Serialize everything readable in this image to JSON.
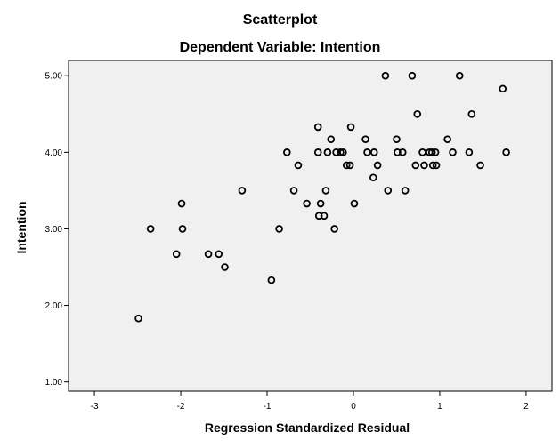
{
  "chart_data": {
    "type": "scatter",
    "title": "Scatterplot",
    "subtitle": "Dependent Variable: Intention",
    "xlabel": "Regression Standardized Residual",
    "ylabel": "Intention",
    "xlim": [
      -3.3,
      2.3
    ],
    "ylim": [
      0.88,
      5.2
    ],
    "x_ticks": [
      -3,
      -2,
      -1,
      0,
      1,
      2
    ],
    "x_tick_labels": [
      "-3",
      "-2",
      "-1",
      "0",
      "1",
      "2"
    ],
    "y_ticks": [
      1,
      2,
      3,
      4,
      5
    ],
    "y_tick_labels": [
      "1.00",
      "2.00",
      "3.00",
      "4.00",
      "5.00"
    ],
    "grid": false,
    "colors": {
      "plot_background": "#f0f0f0",
      "marker_stroke": "#000000"
    },
    "points": [
      {
        "x": -2.49,
        "y": 1.83
      },
      {
        "x": -2.35,
        "y": 3.0
      },
      {
        "x": -2.05,
        "y": 2.67
      },
      {
        "x": -1.99,
        "y": 3.33
      },
      {
        "x": -1.98,
        "y": 3.0
      },
      {
        "x": -1.68,
        "y": 2.67
      },
      {
        "x": -1.56,
        "y": 2.67
      },
      {
        "x": -1.49,
        "y": 2.5
      },
      {
        "x": -1.29,
        "y": 3.5
      },
      {
        "x": -0.95,
        "y": 2.33
      },
      {
        "x": -0.86,
        "y": 3.0
      },
      {
        "x": -0.77,
        "y": 4.0
      },
      {
        "x": -0.69,
        "y": 3.5
      },
      {
        "x": -0.64,
        "y": 3.83
      },
      {
        "x": -0.54,
        "y": 3.33
      },
      {
        "x": -0.41,
        "y": 4.33
      },
      {
        "x": -0.41,
        "y": 4.0
      },
      {
        "x": -0.4,
        "y": 3.17
      },
      {
        "x": -0.38,
        "y": 3.33
      },
      {
        "x": -0.34,
        "y": 3.17
      },
      {
        "x": -0.32,
        "y": 3.5
      },
      {
        "x": -0.3,
        "y": 4.0
      },
      {
        "x": -0.26,
        "y": 4.17
      },
      {
        "x": -0.22,
        "y": 3.0
      },
      {
        "x": -0.2,
        "y": 4.0
      },
      {
        "x": -0.15,
        "y": 4.0
      },
      {
        "x": -0.12,
        "y": 4.0
      },
      {
        "x": -0.08,
        "y": 3.83
      },
      {
        "x": -0.04,
        "y": 3.83
      },
      {
        "x": -0.03,
        "y": 4.33
      },
      {
        "x": 0.01,
        "y": 3.33
      },
      {
        "x": 0.14,
        "y": 4.17
      },
      {
        "x": 0.16,
        "y": 4.0
      },
      {
        "x": 0.23,
        "y": 3.67
      },
      {
        "x": 0.24,
        "y": 4.0
      },
      {
        "x": 0.28,
        "y": 3.83
      },
      {
        "x": 0.37,
        "y": 5.0
      },
      {
        "x": 0.4,
        "y": 3.5
      },
      {
        "x": 0.5,
        "y": 4.17
      },
      {
        "x": 0.51,
        "y": 4.0
      },
      {
        "x": 0.57,
        "y": 4.0
      },
      {
        "x": 0.6,
        "y": 3.5
      },
      {
        "x": 0.68,
        "y": 5.0
      },
      {
        "x": 0.72,
        "y": 3.83
      },
      {
        "x": 0.74,
        "y": 4.5
      },
      {
        "x": 0.8,
        "y": 4.0
      },
      {
        "x": 0.82,
        "y": 3.83
      },
      {
        "x": 0.88,
        "y": 4.0
      },
      {
        "x": 0.91,
        "y": 4.0
      },
      {
        "x": 0.92,
        "y": 3.83
      },
      {
        "x": 0.95,
        "y": 4.0
      },
      {
        "x": 0.96,
        "y": 3.83
      },
      {
        "x": 1.09,
        "y": 4.17
      },
      {
        "x": 1.15,
        "y": 4.0
      },
      {
        "x": 1.23,
        "y": 5.0
      },
      {
        "x": 1.34,
        "y": 4.0
      },
      {
        "x": 1.37,
        "y": 4.5
      },
      {
        "x": 1.47,
        "y": 3.83
      },
      {
        "x": 1.73,
        "y": 4.83
      },
      {
        "x": 1.77,
        "y": 4.0
      }
    ]
  }
}
